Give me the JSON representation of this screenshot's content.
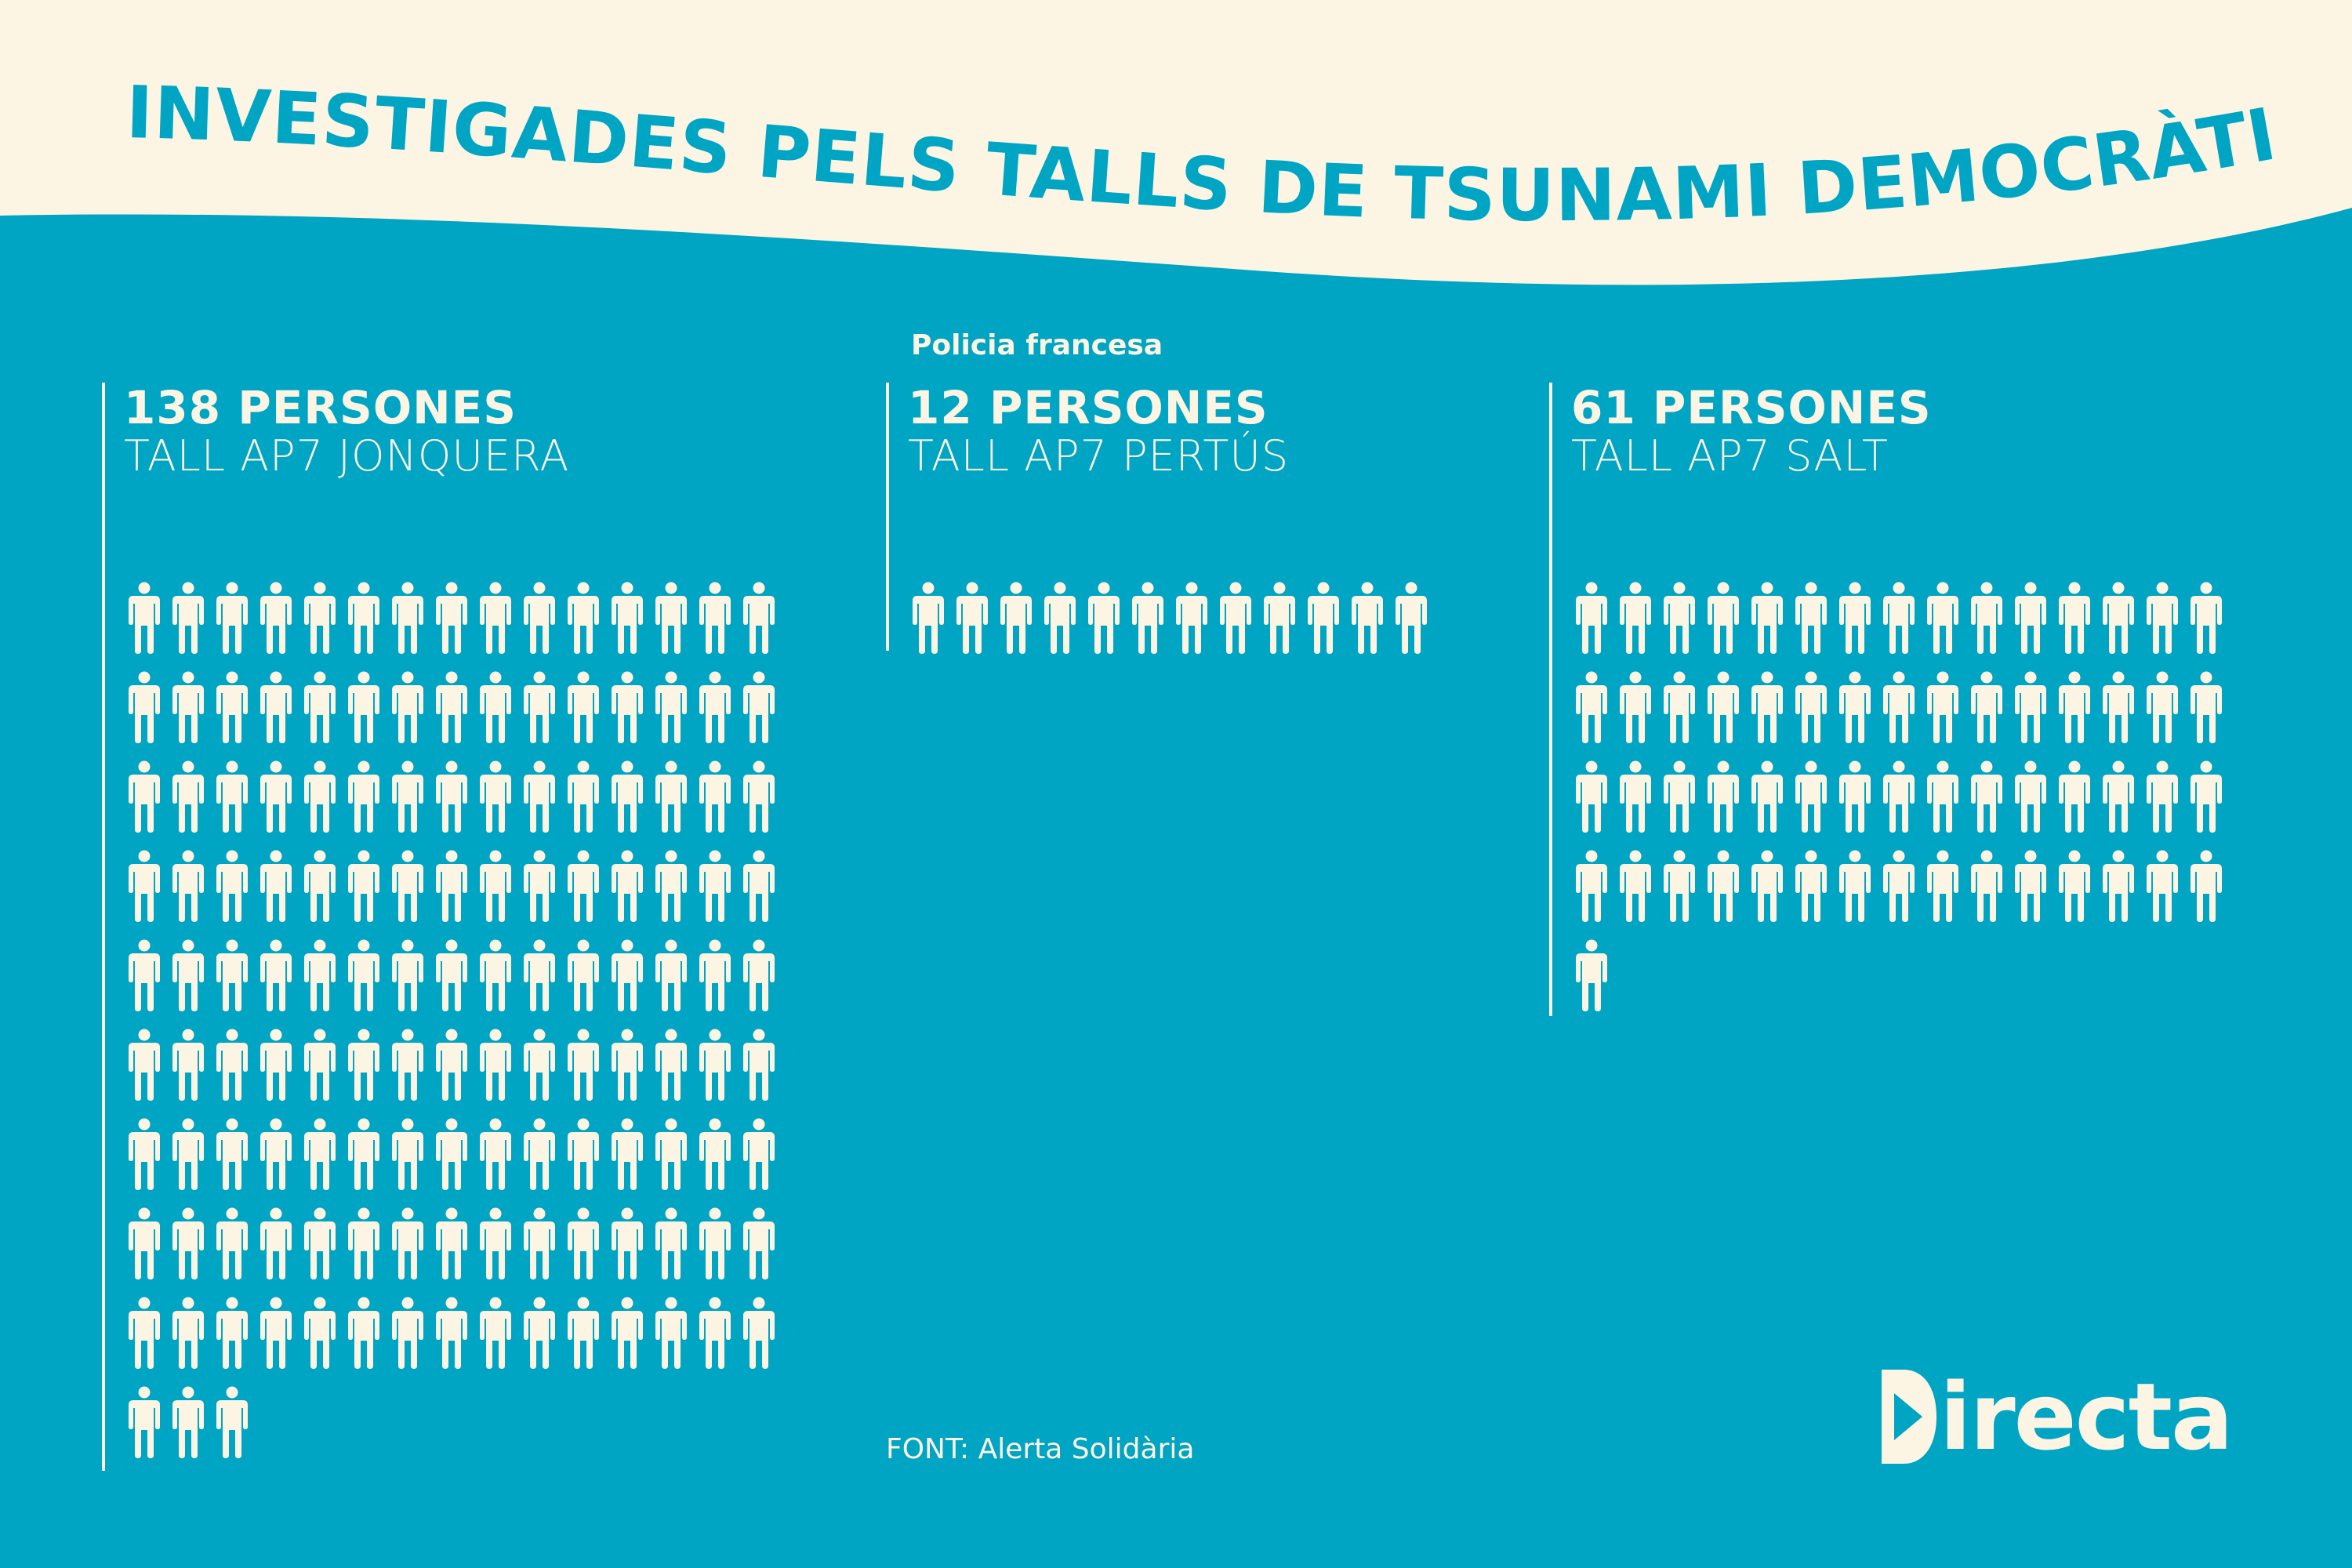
{
  "title": "INVESTIGADES PELS TALLS DE TSUNAMI DEMOCRÀTIC",
  "colors": {
    "background": "#00a5c4",
    "banner": "#fdf5e4",
    "icon": "#fdf5e4",
    "title": "#00a5c4"
  },
  "icon": "person-icon",
  "chart_data": [
    {
      "type": "pictogram",
      "value_label": "138 PERSONES",
      "category": "TALL AP7 JONQUERA",
      "note": "",
      "value": 138,
      "icons_per_row": 15
    },
    {
      "type": "pictogram",
      "value_label": "12 PERSONES",
      "category": "TALL AP7 PERTÚS",
      "note": "Policia francesa",
      "value": 12,
      "icons_per_row": 15
    },
    {
      "type": "pictogram",
      "value_label": "61 PERSONES",
      "category": "TALL AP7 SALT",
      "note": "",
      "value": 61,
      "icons_per_row": 15
    }
  ],
  "source": "FONT: Alerta Solidària",
  "logo": {
    "text": "irecta",
    "name": "Directa"
  }
}
